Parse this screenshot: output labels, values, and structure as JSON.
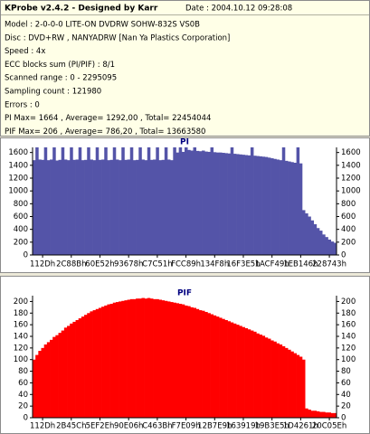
{
  "header": {
    "title": "KProbe v2.4.2 - Designed by Karr",
    "date": "Date : 2004.10.12 09:28:08"
  },
  "info": [
    "Model : 2-0-0-0 LITE-ON DVDRW SOHW-832S  VS0B",
    "Disc : DVD+RW , NANYADRW [Nan Ya Plastics Corporation]",
    "Speed : 4x",
    "ECC blocks sum (PI/PIF) : 8/1",
    "Scanned range : 0 - 2295095",
    "Sampling count : 121980",
    "Errors : 0",
    "PI Max= 1664 , Average= 1292,00 , Total= 22454044",
    "PIF Max= 206 , Average= 786,20 , Total= 13663580"
  ],
  "chart_data": [
    {
      "type": "bar",
      "title": "PI",
      "color": "#5454a8",
      "categories": [
        null,
        null,
        null,
        "112Dh",
        null,
        null,
        null,
        null,
        null,
        null,
        null,
        null,
        null,
        "2C88Bh",
        null,
        null,
        null,
        null,
        null,
        null,
        null,
        null,
        null,
        "60E52h",
        null,
        null,
        null,
        null,
        null,
        null,
        null,
        null,
        null,
        "93678h",
        null,
        null,
        null,
        null,
        null,
        null,
        null,
        null,
        null,
        "C7C51h",
        null,
        null,
        null,
        null,
        null,
        null,
        null,
        null,
        null,
        "FCC89h",
        null,
        null,
        null,
        null,
        null,
        null,
        null,
        null,
        null,
        "134F8h",
        null,
        null,
        null,
        null,
        null,
        null,
        null,
        null,
        null,
        "16F3E5h",
        null,
        null,
        null,
        null,
        null,
        null,
        null,
        null,
        null,
        "1ACF49h",
        null,
        null,
        null,
        null,
        null,
        null,
        null,
        null,
        null,
        "1EB146h",
        null,
        null,
        null,
        null,
        null,
        null,
        null,
        null,
        null,
        "228743h",
        null,
        null
      ],
      "values": [
        1480,
        1680,
        1490,
        1485,
        1680,
        1480,
        1490,
        1680,
        1475,
        1485,
        1680,
        1490,
        1480,
        1680,
        1485,
        1490,
        1680,
        1480,
        1485,
        1680,
        1490,
        1480,
        1680,
        1485,
        1490,
        1680,
        1480,
        1485,
        1680,
        1490,
        1480,
        1680,
        1485,
        1490,
        1680,
        1480,
        1485,
        1680,
        1490,
        1480,
        1680,
        1485,
        1490,
        1680,
        1480,
        1485,
        1680,
        1490,
        1480,
        1680,
        1600,
        1680,
        1610,
        1680,
        1640,
        1630,
        1680,
        1625,
        1620,
        1630,
        1615,
        1610,
        1680,
        1605,
        1600,
        1600,
        1595,
        1590,
        1585,
        1680,
        1580,
        1575,
        1570,
        1565,
        1560,
        1555,
        1680,
        1550,
        1545,
        1540,
        1535,
        1530,
        1520,
        1510,
        1500,
        1490,
        1480,
        1680,
        1470,
        1460,
        1450,
        1440,
        1680,
        1430,
        700,
        650,
        600,
        540,
        480,
        420,
        380,
        320,
        280,
        240,
        210,
        190
      ],
      "ylim": [
        0,
        1680
      ],
      "yticks": [
        0,
        200,
        400,
        600,
        800,
        1000,
        1200,
        1400,
        1600
      ]
    },
    {
      "type": "bar",
      "title": "PIF",
      "color": "#ff0000",
      "categories": [
        null,
        null,
        null,
        "112Dh",
        null,
        null,
        null,
        null,
        null,
        null,
        null,
        null,
        null,
        "2B45Ch",
        null,
        null,
        null,
        null,
        null,
        null,
        null,
        null,
        null,
        "5EF2Eh",
        null,
        null,
        null,
        null,
        null,
        null,
        null,
        null,
        null,
        "90E06h",
        null,
        null,
        null,
        null,
        null,
        null,
        null,
        null,
        null,
        "C463Bh",
        null,
        null,
        null,
        null,
        null,
        null,
        null,
        null,
        null,
        "F7E09h",
        null,
        null,
        null,
        null,
        null,
        null,
        null,
        null,
        null,
        "12B7E9h",
        null,
        null,
        null,
        null,
        null,
        null,
        null,
        null,
        null,
        "163919h",
        null,
        null,
        null,
        null,
        null,
        null,
        null,
        null,
        null,
        "19B3E5h",
        null,
        null,
        null,
        null,
        null,
        null,
        null,
        null,
        null,
        "1D4261h",
        null,
        null,
        null,
        null,
        null,
        null,
        null,
        null,
        null,
        "20C05Eh",
        null,
        null
      ],
      "values": [
        100,
        108,
        115,
        120,
        126,
        130,
        134,
        139,
        142,
        146,
        150,
        155,
        158,
        162,
        165,
        168,
        171,
        174,
        177,
        180,
        183,
        185,
        187,
        189,
        191,
        193,
        195,
        196,
        198,
        199,
        200,
        201,
        202,
        203,
        204,
        204,
        205,
        205,
        206,
        205,
        206,
        205,
        204,
        204,
        203,
        202,
        201,
        200,
        199,
        198,
        197,
        196,
        195,
        193,
        192,
        190,
        189,
        187,
        185,
        184,
        182,
        180,
        178,
        176,
        174,
        172,
        170,
        168,
        166,
        164,
        162,
        160,
        158,
        156,
        154,
        152,
        150,
        148,
        145,
        143,
        141,
        138,
        136,
        133,
        131,
        128,
        126,
        123,
        120,
        117,
        114,
        111,
        108,
        105,
        100,
        16,
        14,
        12,
        12,
        11,
        10,
        10,
        9,
        9,
        8,
        8
      ],
      "ylim": [
        0,
        210
      ],
      "yticks": [
        0,
        20,
        40,
        60,
        80,
        100,
        120,
        140,
        160,
        180,
        200
      ]
    }
  ]
}
